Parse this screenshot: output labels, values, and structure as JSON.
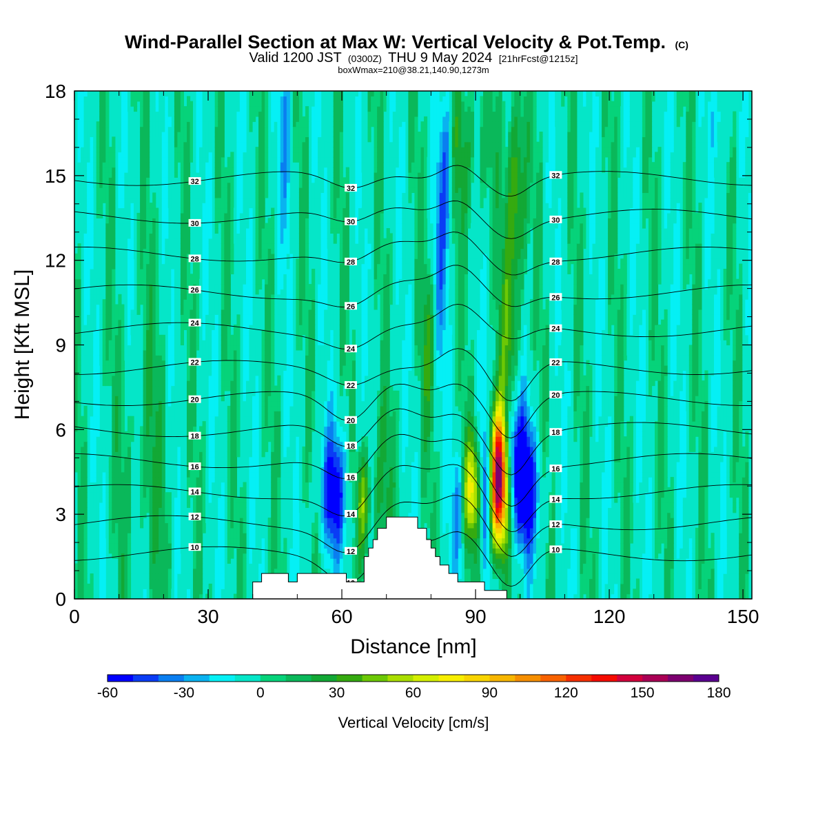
{
  "chart_data": {
    "type": "heatmap",
    "title": "Wind-Parallel Section at Max W: Vertical Velocity & Pot.Temp.",
    "title_mark": "(C)",
    "subtitle_main_1": "Valid 1200 JST",
    "subtitle_small_1": "(0300Z)",
    "subtitle_main_2": "THU 9 May 2024",
    "subtitle_small_2": "[21hrFcst@1215z]",
    "subtitle_2": "boxWmax=210@38.21,140.90,1273m",
    "xlabel": "Distance [nm]",
    "ylabel": "Height [Kft MSL]",
    "xlim": [
      0,
      152
    ],
    "ylim": [
      0,
      18
    ],
    "x_ticks": [
      "0",
      "30",
      "60",
      "90",
      "120",
      "150"
    ],
    "y_ticks": [
      "0",
      "3",
      "6",
      "9",
      "12",
      "15",
      "18"
    ],
    "colorbar": {
      "title": "Vertical Velocity [cm/s]",
      "range": [
        -60,
        180
      ],
      "step": 10,
      "tick_labels": [
        "-60",
        "-30",
        "0",
        "30",
        "60",
        "90",
        "120",
        "150",
        "180"
      ],
      "colors": [
        "#0000ff",
        "#0a3cf5",
        "#0a7ef0",
        "#0ab2f0",
        "#05f0f5",
        "#05e6c8",
        "#06d37a",
        "#0ab85a",
        "#12a835",
        "#35aa10",
        "#6cc805",
        "#aade00",
        "#d4ef00",
        "#f7ee00",
        "#f8d400",
        "#f7b600",
        "#f68f00",
        "#f86200",
        "#f63000",
        "#f50b00",
        "#d2003c",
        "#aa0055",
        "#7d0070",
        "#5a0090"
      ]
    },
    "theta_contours_K": [
      10,
      12,
      14,
      16,
      18,
      20,
      22,
      24,
      26,
      28,
      30,
      32
    ],
    "terrain_profile": [
      [
        0,
        0
      ],
      [
        40,
        0
      ],
      [
        40,
        0.6
      ],
      [
        42,
        0.6
      ],
      [
        42,
        0.9
      ],
      [
        48,
        0.9
      ],
      [
        48,
        0.6
      ],
      [
        50,
        0.6
      ],
      [
        50,
        0.9
      ],
      [
        61,
        0.9
      ],
      [
        61,
        0.6
      ],
      [
        65,
        0.6
      ],
      [
        65,
        1.5
      ],
      [
        66,
        1.5
      ],
      [
        66,
        1.8
      ],
      [
        67,
        1.8
      ],
      [
        67,
        2.1
      ],
      [
        68,
        2.1
      ],
      [
        68,
        2.5
      ],
      [
        70,
        2.5
      ],
      [
        70,
        2.9
      ],
      [
        77,
        2.9
      ],
      [
        77,
        2.5
      ],
      [
        79,
        2.5
      ],
      [
        79,
        2.1
      ],
      [
        80,
        2.1
      ],
      [
        80,
        1.8
      ],
      [
        81,
        1.8
      ],
      [
        81,
        1.5
      ],
      [
        82,
        1.5
      ],
      [
        82,
        1.2
      ],
      [
        84,
        1.2
      ],
      [
        84,
        0.9
      ],
      [
        86,
        0.9
      ],
      [
        86,
        0.6
      ],
      [
        92,
        0.6
      ],
      [
        92,
        0.3
      ],
      [
        97,
        0.3
      ],
      [
        97,
        0
      ],
      [
        152,
        0
      ]
    ],
    "w_features_cm_s": [
      {
        "x": 95,
        "z": 4.5,
        "w": 170
      },
      {
        "x": 89,
        "z": 4.0,
        "w": 60
      },
      {
        "x": 64.5,
        "z": 3.5,
        "w": 45
      },
      {
        "x": 58,
        "z": 3.8,
        "w": -50
      },
      {
        "x": 101,
        "z": 3.8,
        "w": -60
      },
      {
        "x": 83.5,
        "z": 15.0,
        "w": -40
      },
      {
        "x": 99,
        "z": 14.0,
        "w": 45
      }
    ]
  }
}
